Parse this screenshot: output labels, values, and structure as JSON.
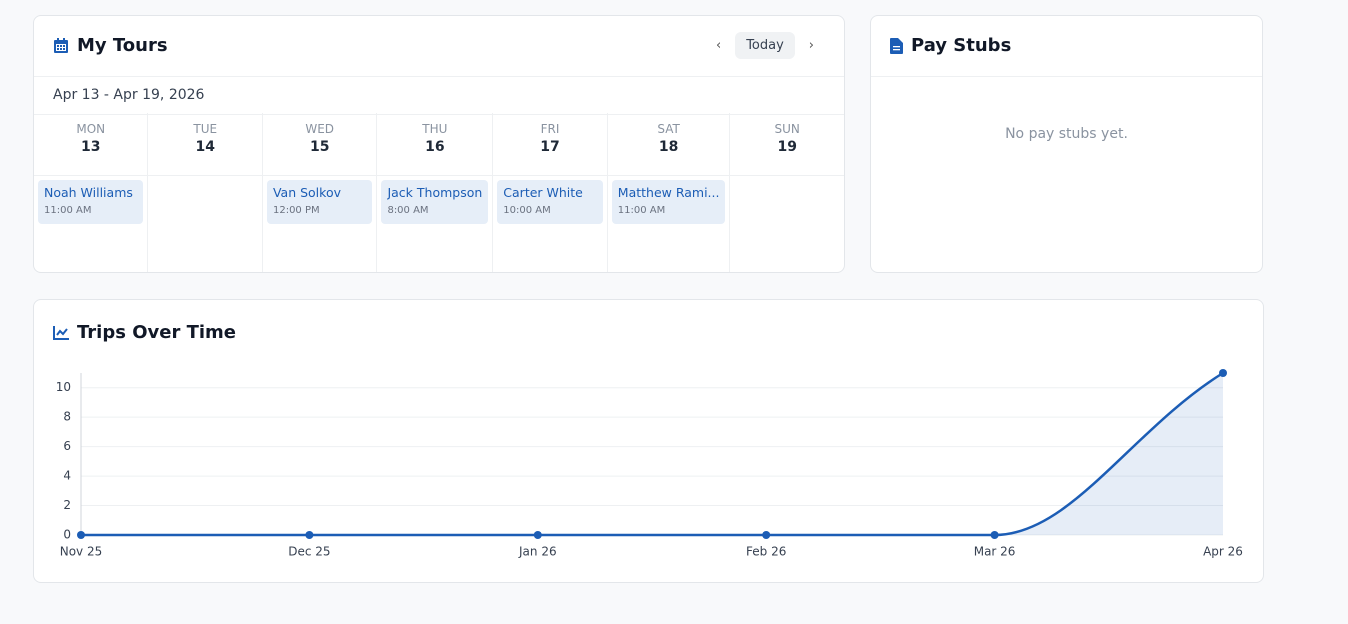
{
  "tours": {
    "title": "My Tours",
    "today": "Today",
    "range": "Apr 13 - Apr 19, 2026",
    "days": [
      {
        "name": "MON",
        "date": "13",
        "events": [
          {
            "name": "Noah Williams",
            "time": "11:00 AM"
          }
        ]
      },
      {
        "name": "TUE",
        "date": "14",
        "events": []
      },
      {
        "name": "WED",
        "date": "15",
        "events": [
          {
            "name": "Van Solkov",
            "time": "12:00 PM"
          }
        ]
      },
      {
        "name": "THU",
        "date": "16",
        "events": [
          {
            "name": "Jack Thompson",
            "time": "8:00 AM"
          }
        ]
      },
      {
        "name": "FRI",
        "date": "17",
        "events": [
          {
            "name": "Carter White",
            "time": "10:00 AM"
          }
        ]
      },
      {
        "name": "SAT",
        "date": "18",
        "events": [
          {
            "name": "Matthew Rami...",
            "time": "11:00 AM"
          }
        ]
      },
      {
        "name": "SUN",
        "date": "19",
        "events": []
      }
    ]
  },
  "pay_stubs": {
    "title": "Pay Stubs",
    "empty": "No pay stubs yet."
  },
  "chart_data": {
    "type": "line",
    "title": "Trips Over Time",
    "categories": [
      "Nov 25",
      "Dec 25",
      "Jan 26",
      "Feb 26",
      "Mar 26",
      "Apr 26"
    ],
    "values": [
      0,
      0,
      0,
      0,
      0,
      11
    ],
    "color": "#1c5db5",
    "ylim": [
      0,
      11
    ],
    "yticks": [
      0,
      2,
      4,
      6,
      8,
      10
    ],
    "grid": true
  }
}
